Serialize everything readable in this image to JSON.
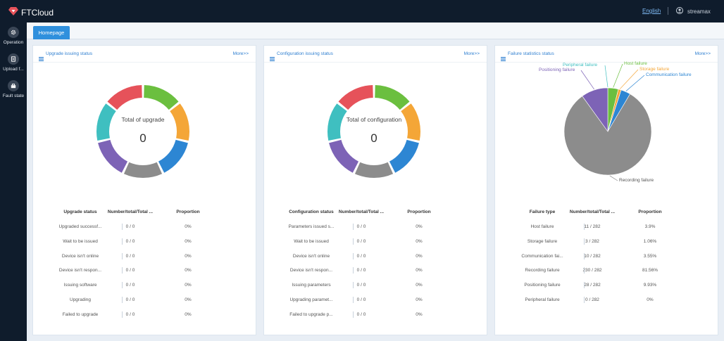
{
  "app": {
    "name": "FTCloud",
    "language": "English",
    "user": "streamax"
  },
  "sidebar": {
    "items": [
      {
        "label": "Operation",
        "icon": "gear-icon"
      },
      {
        "label": "Upload f...",
        "icon": "upload-icon"
      },
      {
        "label": "Fault state",
        "icon": "fault-icon"
      }
    ]
  },
  "tabs": [
    {
      "label": "Homepage"
    }
  ],
  "colors": {
    "green": "#6bbf3f",
    "orange": "#f4a637",
    "blue": "#2d86d3",
    "gray": "#8c8c8c",
    "purple": "#7d63b6",
    "teal": "#3fbfc0",
    "red": "#e6525a"
  },
  "panels": [
    {
      "title": "Upgrade issuing status",
      "more": "More>>",
      "center_label": "Total of upgrade",
      "center_value": "0",
      "columns": [
        "Upgrade status",
        "Number/total/Total ...",
        "Proportion"
      ],
      "rows": [
        [
          "Upgraded successf...",
          "0 / 0",
          "0%"
        ],
        [
          "Wait to be issued",
          "0 / 0",
          "0%"
        ],
        [
          "Device isn't online",
          "0 / 0",
          "0%"
        ],
        [
          "Device isn't respon...",
          "0 / 0",
          "0%"
        ],
        [
          "Issuing software",
          "0 / 0",
          "0%"
        ],
        [
          "Upgrading",
          "0 / 0",
          "0%"
        ],
        [
          "Failed to upgrade",
          "0 / 0",
          "0%"
        ]
      ]
    },
    {
      "title": "Configuration issuing status",
      "more": "More>>",
      "center_label": "Total of configuration",
      "center_value": "0",
      "columns": [
        "Configuration status",
        "Number/total/Total ...",
        "Proportion"
      ],
      "rows": [
        [
          "Parameters issued s...",
          "0 / 0",
          "0%"
        ],
        [
          "Wait to be issued",
          "0 / 0",
          "0%"
        ],
        [
          "Device isn't online",
          "0 / 0",
          "0%"
        ],
        [
          "Device isn't respon...",
          "0 / 0",
          "0%"
        ],
        [
          "Issuing parameters",
          "0 / 0",
          "0%"
        ],
        [
          "Upgrading paramet...",
          "0 / 0",
          "0%"
        ],
        [
          "Failed to upgrade p...",
          "0 / 0",
          "0%"
        ]
      ]
    },
    {
      "title": "Failure statistics status",
      "more": "More>>",
      "columns": [
        "Failure type",
        "Number/total/Total ...",
        "Proportion"
      ],
      "rows": [
        [
          "Host failure",
          "11 / 282",
          "3.9%"
        ],
        [
          "Storage failure",
          "3 / 282",
          "1.06%"
        ],
        [
          "Communication fai...",
          "10 / 282",
          "3.55%"
        ],
        [
          "Recording failure",
          "230 / 282",
          "81.56%"
        ],
        [
          "Positioning failure",
          "28 / 282",
          "9.93%"
        ],
        [
          "Peripheral failure",
          "0 / 282",
          "0%"
        ]
      ]
    }
  ],
  "chart_data": {
    "type": "pie",
    "title": "Failure statistics status",
    "labels": [
      "Host failure",
      "Storage failure",
      "Communication failure",
      "Recording failure",
      "Positioning failure",
      "Peripheral failure"
    ],
    "values": [
      11,
      3,
      10,
      230,
      28,
      0
    ],
    "colors": [
      "#6bbf3f",
      "#f4a637",
      "#2d86d3",
      "#8c8c8c",
      "#7d63b6",
      "#3fbfc0"
    ]
  }
}
